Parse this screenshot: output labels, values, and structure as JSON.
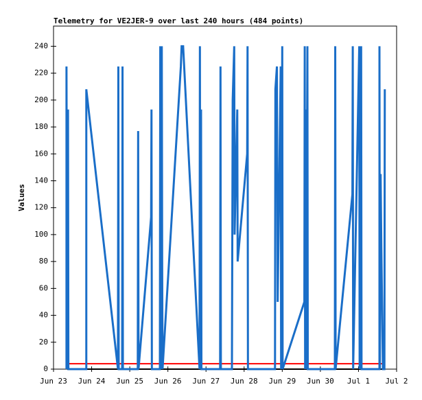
{
  "chart_data": {
    "type": "line",
    "title": "Telemetry for VE2JER-9 over last 240 hours (484 points)",
    "y_label": "Values",
    "xlim": [
      0,
      9
    ],
    "ylim": [
      0,
      255
    ],
    "xticks": [
      {
        "value": 0,
        "label": "Jun 23"
      },
      {
        "value": 1,
        "label": "Jun 24"
      },
      {
        "value": 2,
        "label": "Jun 25"
      },
      {
        "value": 3,
        "label": "Jun 26"
      },
      {
        "value": 4,
        "label": "Jun 27"
      },
      {
        "value": 5,
        "label": "Jun 28"
      },
      {
        "value": 6,
        "label": "Jun 29"
      },
      {
        "value": 7,
        "label": "Jun 30"
      },
      {
        "value": 8,
        "label": "Jul 1"
      },
      {
        "value": 9,
        "label": "Jul 2"
      }
    ],
    "yticks": [
      0,
      20,
      40,
      60,
      80,
      100,
      120,
      140,
      160,
      180,
      200,
      220,
      240
    ],
    "series": [
      {
        "color": "#000000",
        "x": [
          0.36,
          8.69
        ],
        "values": [
          0,
          0
        ]
      },
      {
        "color": "#ff0000",
        "x": [
          0.36,
          8.64
        ],
        "values": [
          4,
          4
        ]
      },
      {
        "color": "#1a6ec8",
        "x": [
          0.34,
          0.34,
          0.36,
          0.38,
          0.39,
          0.86,
          0.86,
          1.69,
          1.7,
          1.71,
          1.8,
          1.81,
          1.82,
          2.21,
          2.22,
          2.23,
          2.56,
          2.57,
          2.58,
          2.79,
          2.8,
          2.81,
          2.84,
          2.85,
          2.86,
          3.34,
          3.36,
          3.4,
          3.83,
          3.84,
          3.85,
          3.87,
          3.88,
          4.37,
          4.38,
          4.39,
          4.68,
          4.7,
          4.74,
          4.75,
          4.82,
          4.83,
          5.08,
          5.09,
          5.1,
          5.81,
          5.82,
          5.86,
          5.88,
          5.96,
          5.97,
          6.0,
          6.01,
          6.58,
          6.59,
          6.6,
          6.62,
          6.63,
          6.66,
          6.67,
          7.38,
          7.39,
          7.4,
          7.84,
          7.85,
          7.86,
          8.02,
          8.03,
          8.07,
          8.08,
          8.55,
          8.55,
          8.56,
          8.58,
          8.6,
          8.64,
          8.68,
          8.69
        ],
        "values": [
          0,
          225,
          0,
          193,
          0,
          0,
          208,
          0,
          225,
          0,
          0,
          225,
          0,
          0,
          177,
          0,
          113,
          193,
          0,
          0,
          240,
          0,
          240,
          80,
          0,
          225,
          240,
          240,
          0,
          240,
          0,
          193,
          0,
          0,
          225,
          0,
          0,
          200,
          240,
          100,
          193,
          80,
          160,
          240,
          0,
          0,
          208,
          225,
          50,
          225,
          0,
          240,
          0,
          50,
          240,
          0,
          193,
          0,
          240,
          0,
          0,
          240,
          0,
          130,
          240,
          0,
          240,
          0,
          240,
          0,
          0,
          240,
          0,
          145,
          90,
          0,
          0,
          208
        ]
      }
    ]
  }
}
